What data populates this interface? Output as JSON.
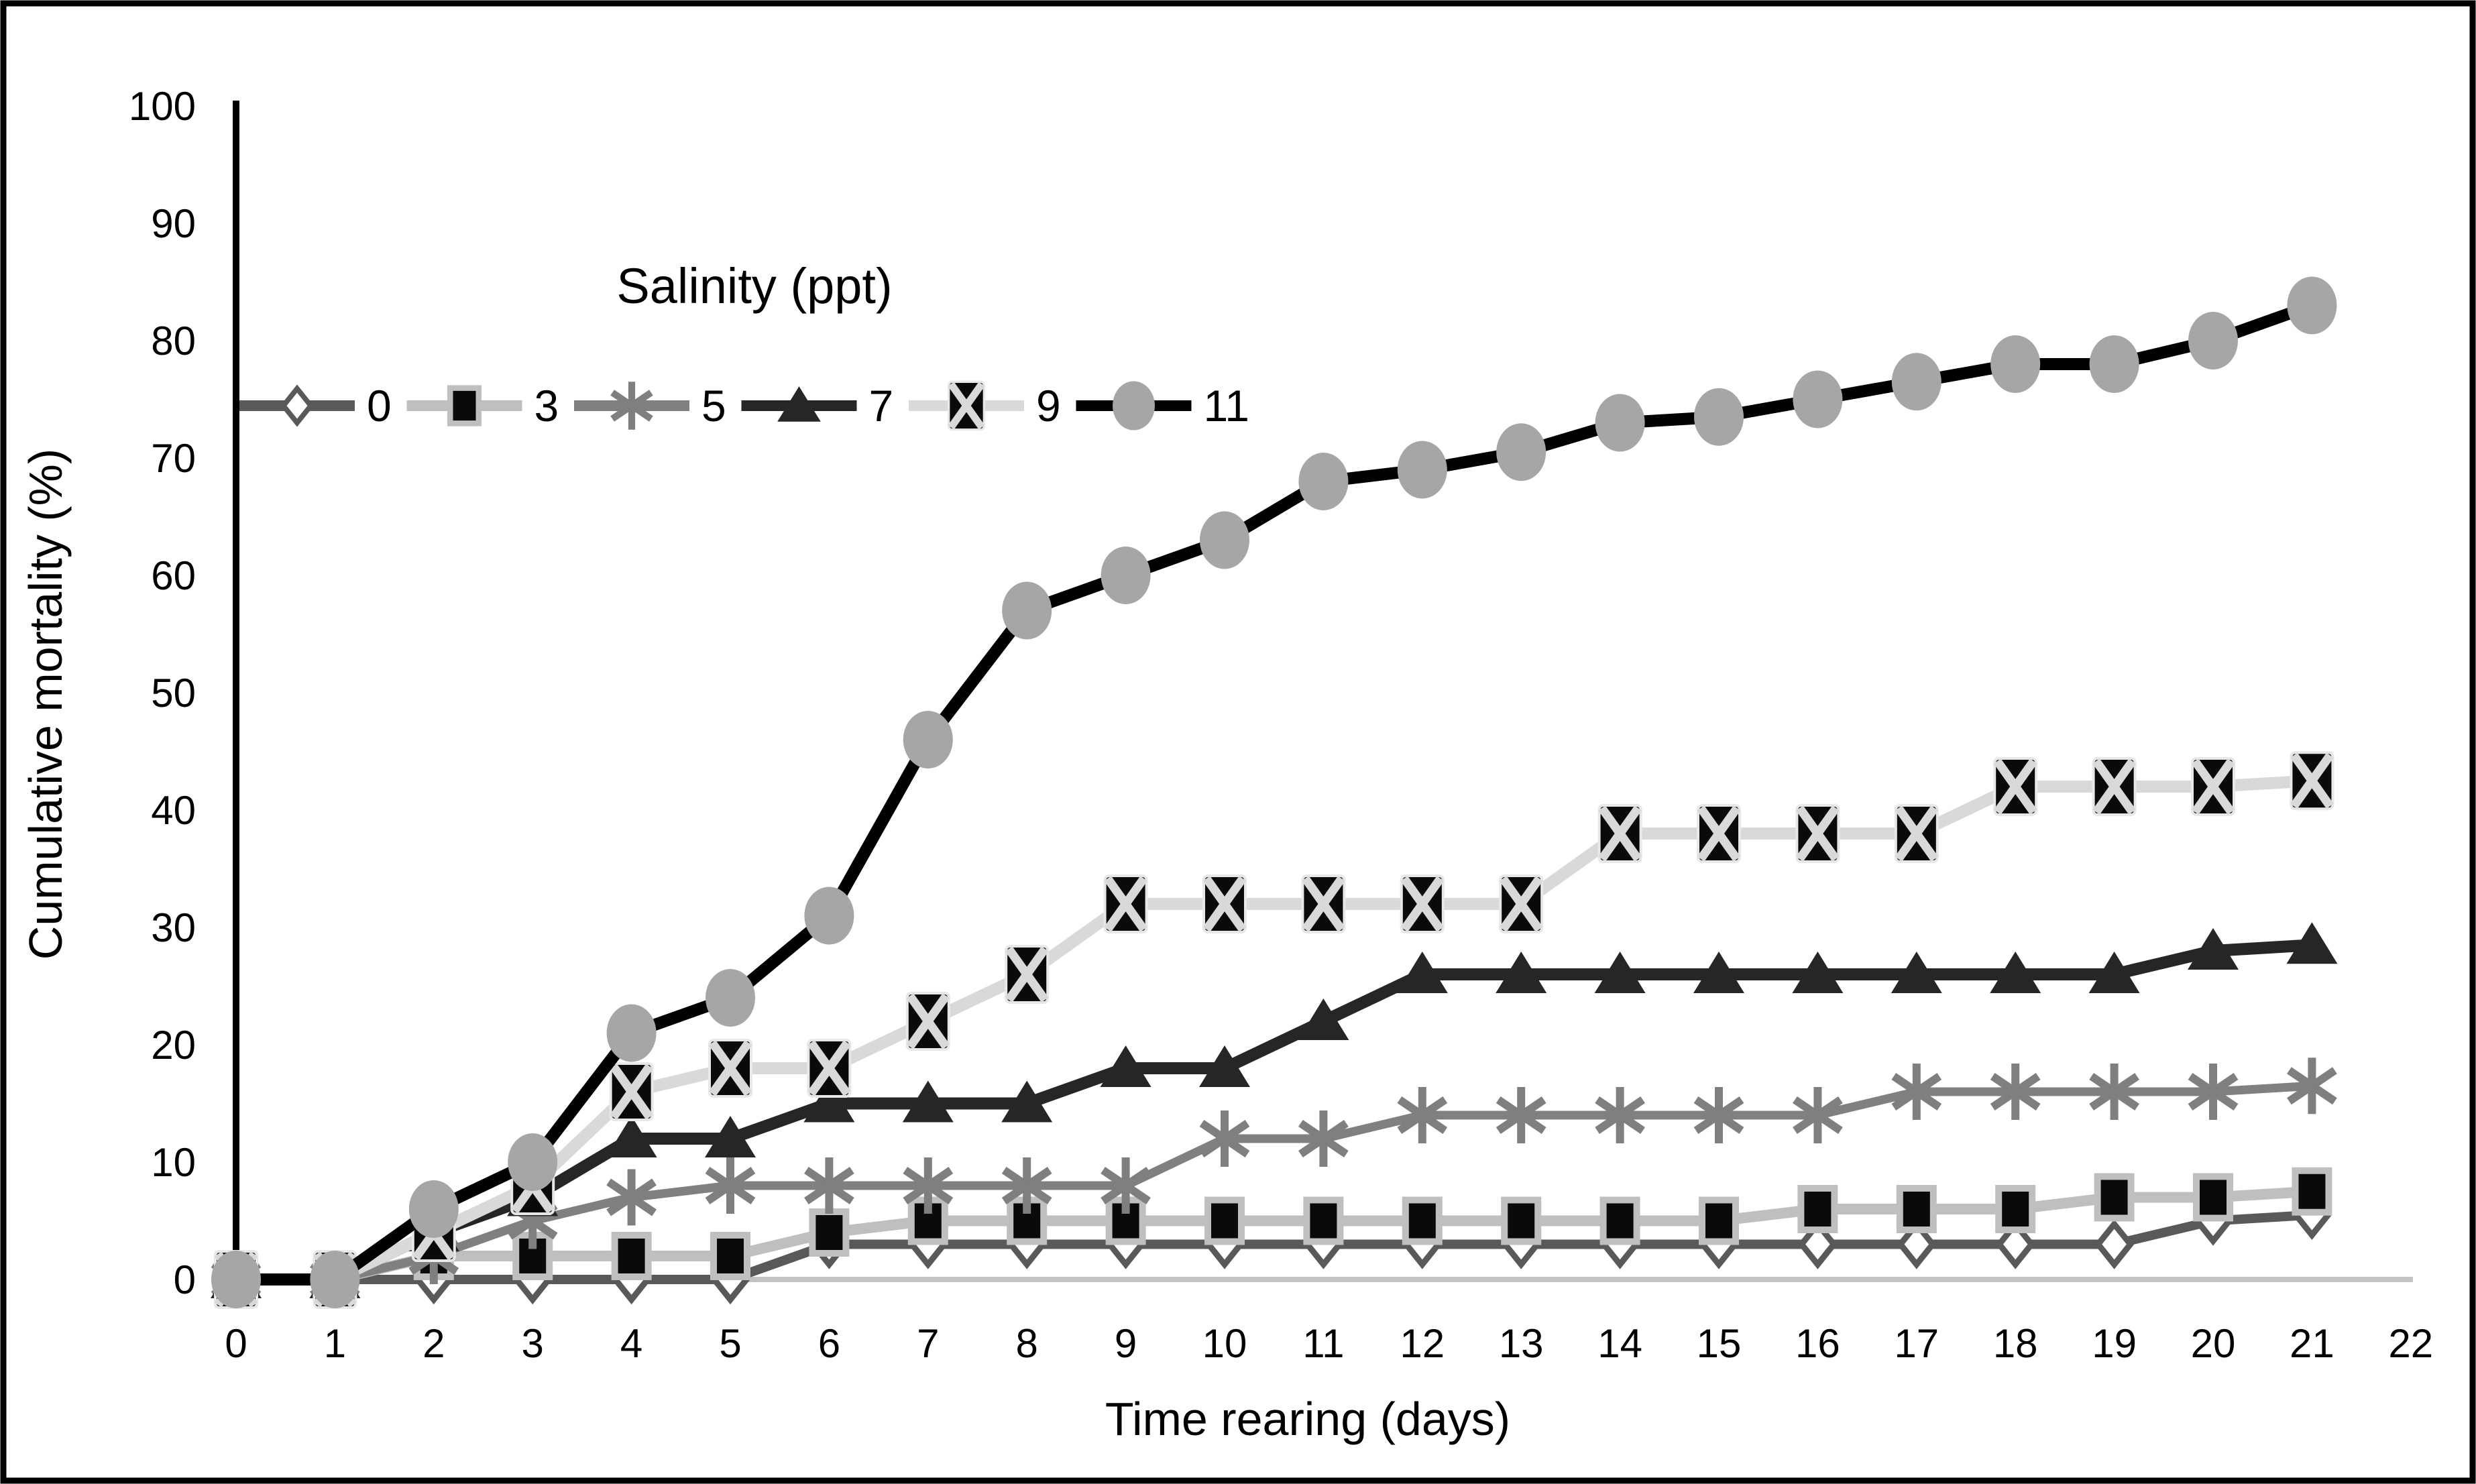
{
  "figure": {
    "background": "#ffffff",
    "border_color": "#000000",
    "axis_color": "#000000",
    "baseline_color": "#c3c3c3"
  },
  "chart_data": {
    "type": "line",
    "title": "",
    "legend_title": "Salinity (ppt)",
    "xlabel": "Time rearing (days)",
    "ylabel": "Cumulative mortality (%)",
    "xlim": [
      0,
      22
    ],
    "ylim": [
      0,
      100
    ],
    "grid": false,
    "legend_position": "inside-top-left",
    "x_ticks": [
      0,
      1,
      2,
      3,
      4,
      5,
      6,
      7,
      8,
      9,
      10,
      11,
      12,
      13,
      14,
      15,
      16,
      17,
      18,
      19,
      20,
      21,
      22
    ],
    "y_ticks": [
      0,
      10,
      20,
      30,
      40,
      50,
      60,
      70,
      80,
      90,
      100
    ],
    "x": [
      0,
      1,
      2,
      3,
      4,
      5,
      6,
      7,
      8,
      9,
      10,
      11,
      12,
      13,
      14,
      15,
      16,
      17,
      18,
      19,
      20,
      21
    ],
    "series": [
      {
        "name": "0",
        "marker": "open-diamond",
        "line_color": "#595959",
        "line_width": 14,
        "marker_fill": "#ffffff",
        "marker_stroke": "#595959",
        "values": [
          0,
          0,
          0,
          0,
          0,
          0,
          3,
          3,
          3,
          3,
          3,
          3,
          3,
          3,
          3,
          3,
          3,
          3,
          3,
          3,
          5,
          5.5
        ]
      },
      {
        "name": "3",
        "marker": "filled-square",
        "line_color": "#bfbfbf",
        "line_width": 16,
        "marker_fill": "#0a0a0a",
        "marker_stroke": "#bfbfbf",
        "values": [
          0,
          0,
          2,
          2,
          2,
          2,
          4,
          5,
          5,
          5,
          5,
          5,
          5,
          5,
          5,
          5,
          6,
          6,
          6,
          7,
          7,
          7.5
        ]
      },
      {
        "name": "5",
        "marker": "asterisk",
        "line_color": "#808080",
        "line_width": 13,
        "marker_fill": "#7f7f7f",
        "marker_stroke": "#7f7f7f",
        "values": [
          0,
          0,
          2,
          5,
          7,
          8,
          8,
          8,
          8,
          8,
          12,
          12,
          14,
          14,
          14,
          14,
          14,
          16,
          16,
          16,
          16,
          16.5
        ]
      },
      {
        "name": "7",
        "marker": "filled-triangle",
        "line_color": "#262626",
        "line_width": 18,
        "marker_fill": "#262626",
        "marker_stroke": "#262626",
        "values": [
          0,
          0,
          4,
          7,
          12,
          12,
          15,
          15,
          15,
          18,
          18,
          22,
          26,
          26,
          26,
          26,
          26,
          26,
          26,
          26,
          28,
          28.5
        ]
      },
      {
        "name": "9",
        "marker": "square-x",
        "line_color": "#d9d9d9",
        "line_width": 18,
        "marker_fill": "#0a0a0a",
        "marker_stroke": "#d9d9d9",
        "values": [
          0,
          0,
          4,
          8,
          16,
          18,
          18,
          22,
          26,
          32,
          32,
          32,
          32,
          32,
          38,
          38,
          38,
          38,
          42,
          42,
          42,
          42.5
        ]
      },
      {
        "name": "11",
        "marker": "filled-circle",
        "line_color": "#000000",
        "line_width": 18,
        "marker_fill": "#a6a6a6",
        "marker_stroke": "#a6a6a6",
        "values": [
          0,
          0,
          6,
          10,
          21,
          24,
          31,
          46,
          57,
          60,
          63,
          68,
          69,
          70.5,
          73,
          73.5,
          75,
          76.5,
          78,
          78,
          80,
          83
        ]
      }
    ]
  }
}
